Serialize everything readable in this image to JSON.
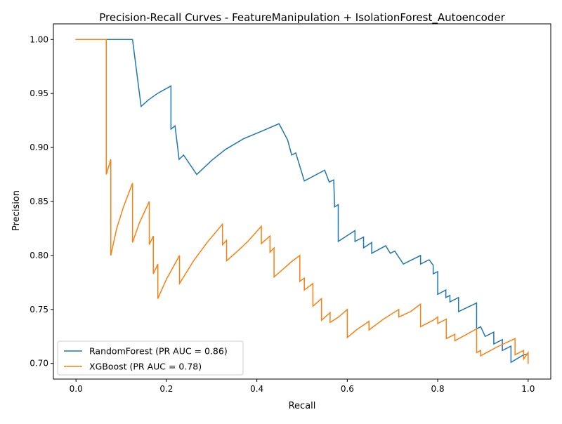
{
  "chart_data": {
    "type": "line",
    "title": "Precision-Recall Curves - FeatureManipulation + IsolationForest_Autoencoder",
    "xlabel": "Recall",
    "ylabel": "Precision",
    "xlim": [
      -0.05,
      1.05
    ],
    "ylim": [
      0.6855,
      1.0145
    ],
    "xticks": [
      0.0,
      0.2,
      0.4,
      0.6,
      0.8,
      1.0
    ],
    "xtick_labels": [
      "0.0",
      "0.2",
      "0.4",
      "0.6",
      "0.8",
      "1.0"
    ],
    "yticks": [
      0.7,
      0.75,
      0.8,
      0.85,
      0.9,
      0.95,
      1.0
    ],
    "ytick_labels": [
      "0.70",
      "0.75",
      "0.80",
      "0.85",
      "0.90",
      "0.95",
      "1.00"
    ],
    "grid": false,
    "legend_position": "lower-left",
    "series": [
      {
        "name": "RandomForest (PR AUC = 0.86)",
        "color": "#1f77b4",
        "points": [
          [
            0.0,
            1.0
          ],
          [
            0.125,
            1.0
          ],
          [
            0.144,
            0.938
          ],
          [
            0.16,
            0.944
          ],
          [
            0.18,
            0.95
          ],
          [
            0.21,
            0.957
          ],
          [
            0.21,
            0.917
          ],
          [
            0.219,
            0.92
          ],
          [
            0.228,
            0.889
          ],
          [
            0.238,
            0.893
          ],
          [
            0.267,
            0.875
          ],
          [
            0.3,
            0.888
          ],
          [
            0.33,
            0.898
          ],
          [
            0.37,
            0.908
          ],
          [
            0.41,
            0.915
          ],
          [
            0.449,
            0.922
          ],
          [
            0.468,
            0.907
          ],
          [
            0.477,
            0.893
          ],
          [
            0.486,
            0.895
          ],
          [
            0.505,
            0.869
          ],
          [
            0.55,
            0.879
          ],
          [
            0.56,
            0.868
          ],
          [
            0.57,
            0.87
          ],
          [
            0.572,
            0.845
          ],
          [
            0.58,
            0.847
          ],
          [
            0.58,
            0.813
          ],
          [
            0.617,
            0.823
          ],
          [
            0.617,
            0.813
          ],
          [
            0.636,
            0.817
          ],
          [
            0.636,
            0.807
          ],
          [
            0.654,
            0.812
          ],
          [
            0.654,
            0.802
          ],
          [
            0.685,
            0.809
          ],
          [
            0.695,
            0.802
          ],
          [
            0.705,
            0.804
          ],
          [
            0.724,
            0.792
          ],
          [
            0.762,
            0.8
          ],
          [
            0.762,
            0.792
          ],
          [
            0.781,
            0.796
          ],
          [
            0.79,
            0.791
          ],
          [
            0.79,
            0.783
          ],
          [
            0.8,
            0.785
          ],
          [
            0.8,
            0.764
          ],
          [
            0.818,
            0.768
          ],
          [
            0.818,
            0.761
          ],
          [
            0.827,
            0.763
          ],
          [
            0.827,
            0.757
          ],
          [
            0.846,
            0.761
          ],
          [
            0.846,
            0.748
          ],
          [
            0.886,
            0.756
          ],
          [
            0.886,
            0.732
          ],
          [
            0.895,
            0.734
          ],
          [
            0.905,
            0.725
          ],
          [
            0.924,
            0.729
          ],
          [
            0.924,
            0.718
          ],
          [
            0.943,
            0.722
          ],
          [
            0.943,
            0.712
          ],
          [
            0.962,
            0.716
          ],
          [
            0.962,
            0.701
          ],
          [
            0.99,
            0.708
          ],
          [
            1.0,
            0.709
          ]
        ]
      },
      {
        "name": "XGBoost (PR AUC = 0.78)",
        "color": "#ff7f0e",
        "points": [
          [
            0.0,
            1.0
          ],
          [
            0.067,
            1.0
          ],
          [
            0.067,
            0.875
          ],
          [
            0.077,
            0.889
          ],
          [
            0.077,
            0.8
          ],
          [
            0.09,
            0.825
          ],
          [
            0.105,
            0.845
          ],
          [
            0.125,
            0.867
          ],
          [
            0.125,
            0.812
          ],
          [
            0.14,
            0.83
          ],
          [
            0.162,
            0.85
          ],
          [
            0.162,
            0.81
          ],
          [
            0.171,
            0.818
          ],
          [
            0.171,
            0.783
          ],
          [
            0.181,
            0.792
          ],
          [
            0.181,
            0.76
          ],
          [
            0.2,
            0.778
          ],
          [
            0.229,
            0.8
          ],
          [
            0.229,
            0.774
          ],
          [
            0.26,
            0.795
          ],
          [
            0.29,
            0.812
          ],
          [
            0.324,
            0.829
          ],
          [
            0.324,
            0.81
          ],
          [
            0.333,
            0.814
          ],
          [
            0.333,
            0.795
          ],
          [
            0.36,
            0.805
          ],
          [
            0.38,
            0.813
          ],
          [
            0.41,
            0.827
          ],
          [
            0.41,
            0.811
          ],
          [
            0.429,
            0.818
          ],
          [
            0.429,
            0.803
          ],
          [
            0.438,
            0.807
          ],
          [
            0.438,
            0.78
          ],
          [
            0.46,
            0.788
          ],
          [
            0.476,
            0.794
          ],
          [
            0.495,
            0.8
          ],
          [
            0.495,
            0.776
          ],
          [
            0.505,
            0.779
          ],
          [
            0.505,
            0.768
          ],
          [
            0.524,
            0.774
          ],
          [
            0.524,
            0.753
          ],
          [
            0.543,
            0.76
          ],
          [
            0.543,
            0.74
          ],
          [
            0.562,
            0.747
          ],
          [
            0.562,
            0.738
          ],
          [
            0.581,
            0.743
          ],
          [
            0.6,
            0.75
          ],
          [
            0.6,
            0.724
          ],
          [
            0.62,
            0.731
          ],
          [
            0.648,
            0.739
          ],
          [
            0.648,
            0.731
          ],
          [
            0.68,
            0.741
          ],
          [
            0.714,
            0.75
          ],
          [
            0.714,
            0.743
          ],
          [
            0.74,
            0.748
          ],
          [
            0.762,
            0.755
          ],
          [
            0.762,
            0.734
          ],
          [
            0.79,
            0.74
          ],
          [
            0.8,
            0.743
          ],
          [
            0.8,
            0.737
          ],
          [
            0.819,
            0.741
          ],
          [
            0.819,
            0.723
          ],
          [
            0.838,
            0.727
          ],
          [
            0.838,
            0.721
          ],
          [
            0.86,
            0.726
          ],
          [
            0.886,
            0.732
          ],
          [
            0.886,
            0.71
          ],
          [
            0.895,
            0.712
          ],
          [
            0.895,
            0.707
          ],
          [
            0.93,
            0.715
          ],
          [
            0.971,
            0.723
          ],
          [
            0.971,
            0.708
          ],
          [
            0.99,
            0.712
          ],
          [
            0.99,
            0.704
          ],
          [
            1.0,
            0.71
          ],
          [
            1.0,
            0.7
          ]
        ]
      }
    ]
  }
}
